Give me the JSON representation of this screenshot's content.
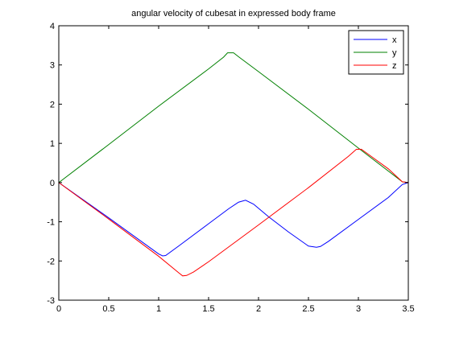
{
  "chart_data": {
    "type": "line",
    "title": "angular velocity of cubesat in expressed body frame",
    "xlabel": "",
    "ylabel": "",
    "xlim": [
      0,
      3.5
    ],
    "ylim": [
      -3,
      4
    ],
    "xticks": [
      0,
      0.5,
      1,
      1.5,
      2,
      2.5,
      3,
      3.5
    ],
    "yticks": [
      -3,
      -2,
      -1,
      0,
      1,
      2,
      3,
      4
    ],
    "xtick_labels": [
      "0",
      "0.5",
      "1",
      "1.5",
      "2",
      "2.5",
      "3",
      "3.5"
    ],
    "ytick_labels": [
      "-3",
      "-2",
      "-1",
      "0",
      "1",
      "2",
      "3",
      "4"
    ],
    "grid": false,
    "legend_position": "top-right",
    "series": [
      {
        "name": "x",
        "color": "#0000ff",
        "x": [
          0,
          0.5,
          1.0,
          1.04,
          1.07,
          1.2,
          1.5,
          1.7,
          1.8,
          1.87,
          1.95,
          2.1,
          2.3,
          2.5,
          2.58,
          2.62,
          2.7,
          3.0,
          3.3,
          3.44,
          3.5
        ],
        "y": [
          0,
          -0.9,
          -1.82,
          -1.87,
          -1.86,
          -1.62,
          -1.05,
          -0.67,
          -0.5,
          -0.45,
          -0.55,
          -0.87,
          -1.26,
          -1.62,
          -1.65,
          -1.63,
          -1.5,
          -0.94,
          -0.38,
          -0.05,
          0
        ]
      },
      {
        "name": "y",
        "color": "#008000",
        "x": [
          0,
          0.5,
          1.0,
          1.5,
          1.65,
          1.69,
          1.75,
          1.8,
          2.0,
          2.5,
          3.0,
          3.44,
          3.5
        ],
        "y": [
          0,
          0.97,
          1.95,
          2.9,
          3.2,
          3.31,
          3.31,
          3.21,
          2.83,
          1.87,
          0.88,
          0.02,
          0
        ]
      },
      {
        "name": "z",
        "color": "#ff0000",
        "x": [
          0,
          0.5,
          1.0,
          1.2,
          1.24,
          1.28,
          1.35,
          1.5,
          2.0,
          2.5,
          2.9,
          2.98,
          3.03,
          3.1,
          3.3,
          3.44,
          3.5
        ],
        "y": [
          0,
          -0.93,
          -1.88,
          -2.3,
          -2.38,
          -2.37,
          -2.28,
          -2.02,
          -1.08,
          -0.13,
          0.67,
          0.85,
          0.85,
          0.72,
          0.35,
          0.02,
          0
        ]
      }
    ]
  }
}
